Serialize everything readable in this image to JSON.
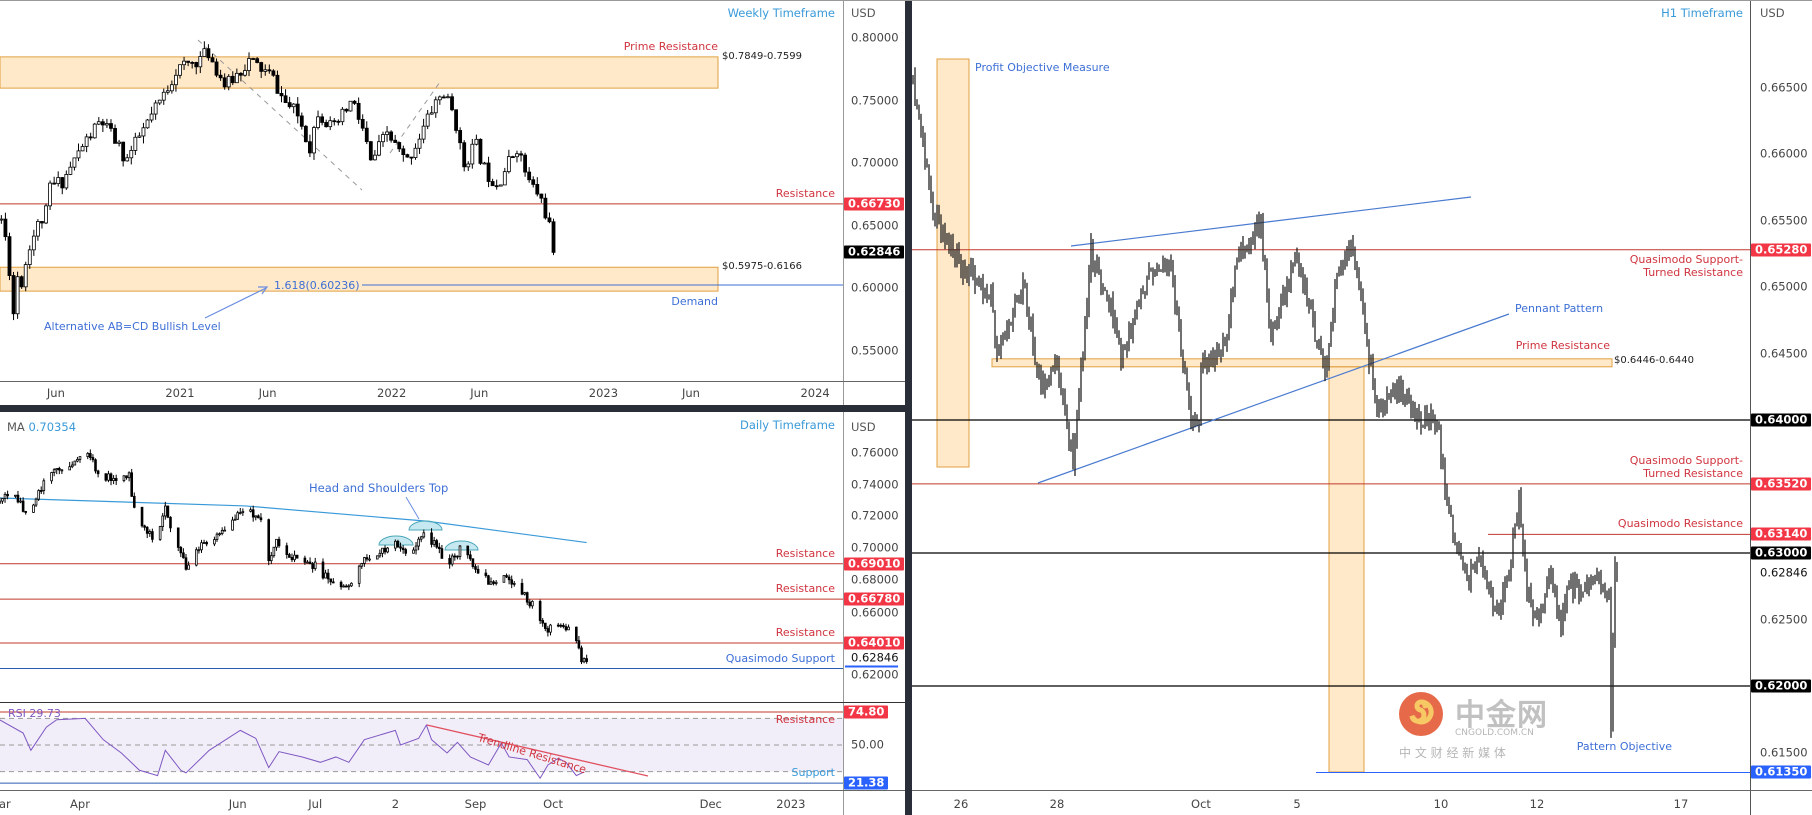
{
  "watermark": {
    "logo_text": "中金网",
    "domain": "CNGOLD.COM.CN",
    "tagline": "中 文 财 经 新 媒 体"
  },
  "chart_data": [
    {
      "panel": "weekly",
      "type": "candlestick",
      "title": "Weekly Timeframe",
      "currency": "USD",
      "last_price": 0.62846,
      "last_price_tag": "0.62846",
      "y_ticks": [
        "0.80000",
        "0.75000",
        "0.70000",
        "0.65000",
        "0.60000",
        "0.55000"
      ],
      "x_ticks": [
        {
          "date": "2020-06-01",
          "label": "Jun"
        },
        {
          "date": "2021-01-01",
          "label": "2021"
        },
        {
          "date": "2021-06-01",
          "label": "Jun"
        },
        {
          "date": "2022-01-01",
          "label": "2022"
        },
        {
          "date": "2022-06-01",
          "label": "Jun"
        },
        {
          "date": "2023-01-01",
          "label": "2023"
        },
        {
          "date": "2023-06-01",
          "label": "Jun"
        },
        {
          "date": "2024-01-01",
          "label": "2024"
        }
      ],
      "price_path": [
        [
          "2020-02-28",
          0.655
        ],
        [
          "2020-03-06",
          0.64
        ],
        [
          "2020-03-13",
          0.615
        ],
        [
          "2020-03-20",
          0.58
        ],
        [
          "2020-03-27",
          0.61
        ],
        [
          "2020-04-03",
          0.605
        ],
        [
          "2020-04-17",
          0.635
        ],
        [
          "2020-05-01",
          0.65
        ],
        [
          "2020-05-15",
          0.66
        ],
        [
          "2020-05-22",
          0.681
        ],
        [
          "2020-06-13",
          0.686
        ],
        [
          "2020-07-16",
          0.713
        ],
        [
          "2020-08-18",
          0.734
        ],
        [
          "2020-09-11",
          0.718
        ],
        [
          "2020-09-30",
          0.702
        ],
        [
          "2020-10-27",
          0.724
        ],
        [
          "2020-11-29",
          0.75
        ],
        [
          "2020-12-25",
          0.774
        ],
        [
          "2021-02-10",
          0.785
        ],
        [
          "2021-02-17",
          0.79
        ],
        [
          "2021-03-21",
          0.761
        ],
        [
          "2021-04-30",
          0.782
        ],
        [
          "2021-06-09",
          0.769
        ],
        [
          "2021-06-28",
          0.75
        ],
        [
          "2021-07-25",
          0.737
        ],
        [
          "2021-08-13",
          0.713
        ],
        [
          "2021-08-27",
          0.742
        ],
        [
          "2021-09-22",
          0.726
        ],
        [
          "2021-10-25",
          0.75
        ],
        [
          "2021-11-14",
          0.724
        ],
        [
          "2021-11-26",
          0.7
        ],
        [
          "2021-12-24",
          0.724
        ],
        [
          "2022-01-26",
          0.7
        ],
        [
          "2022-02-21",
          0.724
        ],
        [
          "2022-03-18",
          0.75
        ],
        [
          "2022-04-01",
          0.755
        ],
        [
          "2022-04-20",
          0.737
        ],
        [
          "2022-05-04",
          0.697
        ],
        [
          "2022-05-25",
          0.716
        ],
        [
          "2022-06-13",
          0.692
        ],
        [
          "2022-07-03",
          0.684
        ],
        [
          "2022-08-05",
          0.713
        ],
        [
          "2022-08-24",
          0.686
        ],
        [
          "2022-09-14",
          0.673
        ],
        [
          "2022-09-27",
          0.655
        ],
        [
          "2022-10-11",
          0.62846
        ]
      ],
      "levels": [
        {
          "price": 0.6673,
          "tag": "0.66730",
          "label": "Resistance",
          "color": "#f23645"
        }
      ],
      "zones": [
        {
          "low": 0.7599,
          "high": 0.7849,
          "range_label": "$0.7849-0.7599",
          "label": "Prime Resistance",
          "label_pos": "above"
        },
        {
          "low": 0.5975,
          "high": 0.6166,
          "range_label": "$0.5975-0.6166",
          "label": "Demand",
          "label_pos": "below"
        }
      ],
      "fib": {
        "price": 0.60236,
        "label": "1.618(0.60236)"
      },
      "abcd_label": "Alternative AB=CD Bullish Level"
    },
    {
      "panel": "daily",
      "type": "candlestick",
      "title": "Daily Timeframe",
      "currency": "USD",
      "ma": {
        "label": "MA",
        "value": "0.70354",
        "path": [
          [
            "2022-03-01",
            0.7316
          ],
          [
            "2022-06-04",
            0.7266
          ],
          [
            "2022-08-13",
            0.717
          ],
          [
            "2022-10-14",
            0.7035
          ]
        ]
      },
      "last_price": "0.62846",
      "y_ticks": [
        "0.76000",
        "0.74000",
        "0.72000",
        "0.70000",
        "0.68000",
        "0.66000",
        "0.62000"
      ],
      "x_ticks": [
        {
          "date": "2022-03-01",
          "label": "Mar"
        },
        {
          "date": "2022-04-01",
          "label": "Apr"
        },
        {
          "date": "2022-06-01",
          "label": "Jun"
        },
        {
          "date": "2022-07-01",
          "label": "Jul"
        },
        {
          "date": "2022-08-01",
          "label": "2"
        },
        {
          "date": "2022-09-01",
          "label": "Sep"
        },
        {
          "date": "2022-10-01",
          "label": "Oct"
        },
        {
          "date": "2022-12-01",
          "label": "Dec"
        },
        {
          "date": "2023-01-01",
          "label": "2023"
        }
      ],
      "price_path": [
        [
          "2022-03-01",
          0.7285
        ],
        [
          "2022-03-05",
          0.7367
        ],
        [
          "2022-03-13",
          0.7196
        ],
        [
          "2022-03-17",
          0.738
        ],
        [
          "2022-03-22",
          0.749
        ],
        [
          "2022-04-04",
          0.757
        ],
        [
          "2022-04-10",
          0.745
        ],
        [
          "2022-04-20",
          0.745
        ],
        [
          "2022-04-23",
          0.716
        ],
        [
          "2022-04-30",
          0.707
        ],
        [
          "2022-05-04",
          0.726
        ],
        [
          "2022-05-08",
          0.705
        ],
        [
          "2022-05-12",
          0.688
        ],
        [
          "2022-05-18",
          0.703
        ],
        [
          "2022-05-26",
          0.711
        ],
        [
          "2022-06-03",
          0.726
        ],
        [
          "2022-06-10",
          0.718
        ],
        [
          "2022-06-13",
          0.694
        ],
        [
          "2022-06-16",
          0.703
        ],
        [
          "2022-06-22",
          0.694
        ],
        [
          "2022-07-02",
          0.688
        ],
        [
          "2022-07-06",
          0.68
        ],
        [
          "2022-07-11",
          0.675
        ],
        [
          "2022-07-15",
          0.678
        ],
        [
          "2022-07-19",
          0.6906
        ],
        [
          "2022-07-27",
          0.699
        ],
        [
          "2022-08-01",
          0.703
        ],
        [
          "2022-08-06",
          0.697
        ],
        [
          "2022-08-12",
          0.711
        ],
        [
          "2022-08-16",
          0.703
        ],
        [
          "2022-08-21",
          0.6906
        ],
        [
          "2022-08-26",
          0.699
        ],
        [
          "2022-09-02",
          0.686
        ],
        [
          "2022-09-08",
          0.675
        ],
        [
          "2022-09-11",
          0.688
        ],
        [
          "2022-09-17",
          0.673
        ],
        [
          "2022-09-23",
          0.665
        ],
        [
          "2022-09-28",
          0.648
        ],
        [
          "2022-10-04",
          0.65
        ],
        [
          "2022-10-08",
          0.648
        ],
        [
          "2022-10-12",
          0.631
        ],
        [
          "2022-10-14",
          0.62846
        ]
      ],
      "levels": [
        {
          "price": 0.6901,
          "tag": "0.69010",
          "label": "Resistance",
          "color": "#f23645"
        },
        {
          "price": 0.6678,
          "tag": "0.66780",
          "label": "Resistance",
          "color": "#f23645"
        },
        {
          "price": 0.6401,
          "tag": "0.64010",
          "label": "Resistance",
          "color": "#f23645"
        },
        {
          "price": 0.624,
          "label": "Quasimodo Support",
          "color": "#3d6fd6"
        }
      ],
      "pattern_label": "Head and Shoulders Top",
      "rsi": {
        "label": "RSI",
        "value": "29.73",
        "upper": "74.80",
        "upper_value": 74.8,
        "lower": "21.38",
        "lower_value": 21.38,
        "mid_tick": "50.00",
        "band": [
          30,
          70
        ],
        "resistance_label": "Resistance",
        "support_label": "Support",
        "trendline_label": "Trendline Resistance",
        "path": [
          [
            "2022-03-01",
            68.8
          ],
          [
            "2022-03-10",
            59
          ],
          [
            "2022-03-13",
            46
          ],
          [
            "2022-03-19",
            63.5
          ],
          [
            "2022-03-23",
            69
          ],
          [
            "2022-04-03",
            70
          ],
          [
            "2022-04-10",
            54
          ],
          [
            "2022-04-17",
            44
          ],
          [
            "2022-04-24",
            31
          ],
          [
            "2022-05-01",
            27
          ],
          [
            "2022-05-04",
            46
          ],
          [
            "2022-05-10",
            31
          ],
          [
            "2022-05-12",
            29
          ],
          [
            "2022-05-21",
            46
          ],
          [
            "2022-06-02",
            61
          ],
          [
            "2022-06-08",
            55
          ],
          [
            "2022-06-13",
            33
          ],
          [
            "2022-06-17",
            45
          ],
          [
            "2022-06-26",
            41
          ],
          [
            "2022-07-03",
            37
          ],
          [
            "2022-07-09",
            41
          ],
          [
            "2022-07-14",
            37
          ],
          [
            "2022-07-20",
            54
          ],
          [
            "2022-08-01",
            61
          ],
          [
            "2022-08-03",
            50
          ],
          [
            "2022-08-10",
            55
          ],
          [
            "2022-08-13",
            65
          ],
          [
            "2022-08-15",
            54
          ],
          [
            "2022-08-21",
            44
          ],
          [
            "2022-08-25",
            52
          ],
          [
            "2022-08-30",
            41
          ],
          [
            "2022-09-06",
            35
          ],
          [
            "2022-09-11",
            51.5
          ],
          [
            "2022-09-14",
            41
          ],
          [
            "2022-09-21",
            39
          ],
          [
            "2022-09-26",
            25
          ],
          [
            "2022-09-29",
            35
          ],
          [
            "2022-10-03",
            40
          ],
          [
            "2022-10-06",
            37
          ],
          [
            "2022-10-10",
            27
          ],
          [
            "2022-10-13",
            29.73
          ]
        ]
      }
    },
    {
      "panel": "h1",
      "type": "ohlc",
      "title": "H1 Timeframe",
      "currency": "USD",
      "last_price": "0.62846",
      "y_ticks": [
        "0.66500",
        "0.66000",
        "0.65500",
        "0.65000",
        "0.64500",
        "0.62500",
        "0.61500"
      ],
      "x_ticks": [
        {
          "date": "2022-09-26T00:00",
          "label": "26"
        },
        {
          "date": "2022-09-28T00:00",
          "label": "28"
        },
        {
          "date": "2022-10-03T00:00",
          "label": "Oct"
        },
        {
          "date": "2022-10-05T00:00",
          "label": "5"
        },
        {
          "date": "2022-10-10T00:00",
          "label": "10"
        },
        {
          "date": "2022-10-12T00:00",
          "label": "12"
        },
        {
          "date": "2022-10-17T00:00",
          "label": "17"
        }
      ],
      "price_path": [
        [
          "2022-09-23T00:00",
          0.6656
        ],
        [
          "2022-09-23T09:00",
          0.6565
        ],
        [
          "2022-09-23T18:00",
          0.6526
        ],
        [
          "2022-09-26T02:00",
          0.6511
        ],
        [
          "2022-09-26T15:00",
          0.6495
        ],
        [
          "2022-09-26T18:00",
          0.6447
        ],
        [
          "2022-09-27T07:00",
          0.6505
        ],
        [
          "2022-09-27T16:00",
          0.6423
        ],
        [
          "2022-09-28T00:00",
          0.644
        ],
        [
          "2022-09-28T08:00",
          0.6368
        ],
        [
          "2022-09-28T17:00",
          0.6526
        ],
        [
          "2022-09-29T03:00",
          0.6485
        ],
        [
          "2022-09-29T08:00",
          0.6445
        ],
        [
          "2022-09-29T23:00",
          0.6515
        ],
        [
          "2022-09-30T08:00",
          0.652
        ],
        [
          "2022-09-30T15:00",
          0.6445
        ],
        [
          "2022-09-30T20:00",
          0.6395
        ],
        [
          "2022-10-03T12:00",
          0.6455
        ],
        [
          "2022-10-03T18:00",
          0.652
        ],
        [
          "2022-10-04T06:00",
          0.6548
        ],
        [
          "2022-10-04T11:00",
          0.646
        ],
        [
          "2022-10-05T00:00",
          0.6523
        ],
        [
          "2022-10-05T14:00",
          0.6435
        ],
        [
          "2022-10-05T20:00",
          0.6511
        ],
        [
          "2022-10-06T03:00",
          0.6535
        ],
        [
          "2022-10-06T09:00",
          0.648
        ],
        [
          "2022-10-06T16:00",
          0.6405
        ],
        [
          "2022-10-07T02:00",
          0.6428
        ],
        [
          "2022-10-07T12:00",
          0.6402
        ],
        [
          "2022-10-10T01:00",
          0.6365
        ],
        [
          "2022-10-10T03:00",
          0.634
        ],
        [
          "2022-10-10T08:00",
          0.6305
        ],
        [
          "2022-10-10T14:00",
          0.6282
        ],
        [
          "2022-10-10T19:00",
          0.63
        ],
        [
          "2022-10-11T04:00",
          0.6255
        ],
        [
          "2022-10-11T09:00",
          0.6274
        ],
        [
          "2022-10-11T15:00",
          0.634
        ],
        [
          "2022-10-11T19:00",
          0.627
        ],
        [
          "2022-10-12T01:00",
          0.6244
        ],
        [
          "2022-10-12T06:00",
          0.6282
        ],
        [
          "2022-10-12T12:00",
          0.6244
        ],
        [
          "2022-10-12T15:00",
          0.6272
        ],
        [
          "2022-10-13T07:00",
          0.628
        ],
        [
          "2022-10-13T12:00",
          0.6265
        ],
        [
          "2022-10-13T13:00",
          0.617
        ],
        [
          "2022-10-13T15:00",
          0.6296
        ],
        [
          "2022-10-13T16:00",
          0.62846
        ]
      ],
      "levels": [
        {
          "price": 0.6528,
          "tag": "0.65280",
          "label": "Quasimodo Support-\nTurned Resistance",
          "color": "#f23645"
        },
        {
          "price": 0.64,
          "tag": "0.64000",
          "label": "",
          "color": "#000000"
        },
        {
          "price": 0.6352,
          "tag": "0.63520",
          "label": "Quasimodo Support-\nTurned Resistance",
          "color": "#f23645"
        },
        {
          "price": 0.6314,
          "tag": "0.63140",
          "label": "Quasimodo Resistance",
          "color": "#f23645",
          "partial": true
        },
        {
          "price": 0.63,
          "tag": "0.63000",
          "label": "",
          "color": "#000000"
        },
        {
          "price": 0.62,
          "tag": "0.62000",
          "label": "",
          "color": "#000000"
        },
        {
          "price": 0.6135,
          "tag": "0.61350",
          "label": "Pattern Objective",
          "color": "#2962ff",
          "partial": true
        }
      ],
      "zone": {
        "low": 0.644,
        "high": 0.6446,
        "range_label": "$0.6446-0.6440",
        "label": "Prime Resistance"
      },
      "profit_label": "Profit Objective Measure",
      "pennant_label": "Pennant Pattern"
    }
  ]
}
